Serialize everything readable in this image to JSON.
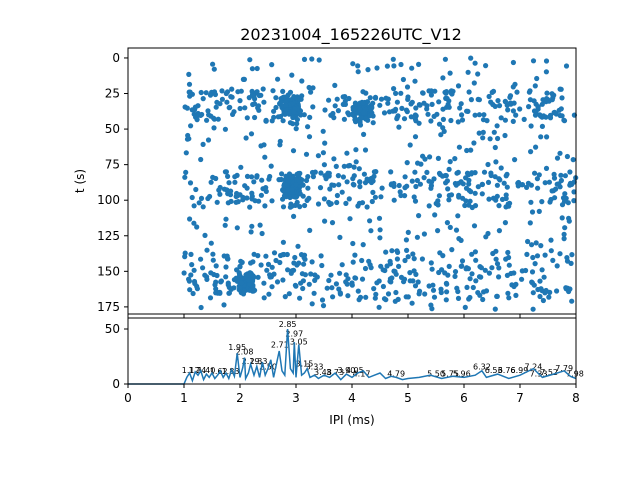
{
  "chart_data": [
    {
      "type": "scatter",
      "title": "20231004_165226UTC_V12",
      "xlabel": "",
      "ylabel": "t (s)",
      "xlim": [
        0,
        8
      ],
      "ylim": [
        180,
        -7
      ],
      "y_inverted": true,
      "yticks": [
        0,
        25,
        50,
        75,
        100,
        125,
        150,
        175
      ],
      "ytick_labels": [
        "0",
        "25",
        "50",
        "75",
        "100",
        "125",
        "150",
        "175"
      ],
      "x_range_of_points": [
        1.0,
        8.0
      ],
      "t_range_of_points": [
        0,
        177
      ],
      "dense_bands_t": [
        [
          23,
          45
        ],
        [
          80,
          105
        ],
        [
          135,
          170
        ]
      ],
      "dense_clusters": [
        {
          "x": 2.9,
          "t": 33
        },
        {
          "x": 2.95,
          "t": 90
        },
        {
          "x": 2.1,
          "t": 158
        },
        {
          "x": 4.2,
          "t": 38
        }
      ],
      "color": "#1f77b4",
      "grid": false
    },
    {
      "type": "line",
      "xlabel": "IPI (ms)",
      "ylabel": "",
      "xlim": [
        0,
        8
      ],
      "ylim": [
        0,
        60
      ],
      "xticks": [
        0,
        1,
        2,
        3,
        4,
        5,
        6,
        7,
        8
      ],
      "xtick_labels": [
        "0",
        "1",
        "2",
        "3",
        "4",
        "5",
        "6",
        "7",
        "8"
      ],
      "yticks": [
        0,
        50
      ],
      "ytick_labels": [
        "0",
        "50"
      ],
      "color": "#1f77b4",
      "grid": false,
      "x": [
        0,
        0.5,
        1.0,
        1.05,
        1.1,
        1.15,
        1.2,
        1.25,
        1.3,
        1.35,
        1.4,
        1.45,
        1.5,
        1.55,
        1.6,
        1.65,
        1.7,
        1.75,
        1.8,
        1.85,
        1.9,
        1.95,
        2.0,
        2.05,
        2.08,
        2.1,
        2.15,
        2.19,
        2.25,
        2.3,
        2.35,
        2.4,
        2.45,
        2.5,
        2.55,
        2.6,
        2.65,
        2.7,
        2.75,
        2.8,
        2.85,
        2.9,
        2.95,
        2.97,
        3.0,
        3.05,
        3.1,
        3.15,
        3.2,
        3.25,
        3.33,
        3.4,
        3.5,
        3.6,
        3.7,
        3.8,
        3.9,
        4.0,
        4.1,
        4.2,
        4.3,
        4.4,
        4.5,
        4.6,
        4.7,
        4.79,
        4.9,
        5.0,
        5.2,
        5.4,
        5.6,
        5.8,
        6.0,
        6.2,
        6.32,
        6.4,
        6.6,
        6.8,
        7.0,
        7.24,
        7.4,
        7.6,
        7.79,
        7.9,
        8.0
      ],
      "values": [
        0,
        0,
        0,
        6,
        10,
        3,
        11,
        8,
        12,
        4,
        9,
        6,
        10,
        5,
        8,
        12,
        6,
        10,
        5,
        13,
        7,
        28,
        6,
        15,
        24,
        5,
        10,
        18,
        8,
        16,
        6,
        20,
        8,
        14,
        22,
        6,
        18,
        30,
        12,
        8,
        50,
        14,
        10,
        38,
        6,
        36,
        8,
        10,
        14,
        6,
        8,
        5,
        8,
        6,
        10,
        4,
        9,
        6,
        10,
        12,
        6,
        8,
        10,
        5,
        7,
        6,
        4,
        5,
        6,
        8,
        5,
        7,
        6,
        8,
        12,
        6,
        9,
        5,
        8,
        14,
        6,
        9,
        12,
        7,
        5
      ],
      "peak_labels": [
        {
          "x": 1.12,
          "y": 10,
          "text": "1.12"
        },
        {
          "x": 1.24,
          "y": 10,
          "text": "1.24"
        },
        {
          "x": 1.4,
          "y": 10,
          "text": "1.40"
        },
        {
          "x": 1.62,
          "y": 9,
          "text": "1.62"
        },
        {
          "x": 1.83,
          "y": 9,
          "text": "1.83"
        },
        {
          "x": 1.95,
          "y": 31,
          "text": "1.95"
        },
        {
          "x": 2.08,
          "y": 27,
          "text": "2.08"
        },
        {
          "x": 2.19,
          "y": 18,
          "text": "2.19"
        },
        {
          "x": 2.33,
          "y": 18,
          "text": "2.33"
        },
        {
          "x": 2.5,
          "y": 13,
          "text": "2.50"
        },
        {
          "x": 2.71,
          "y": 33,
          "text": "2.71"
        },
        {
          "x": 2.85,
          "y": 52,
          "text": "2.85"
        },
        {
          "x": 2.97,
          "y": 43,
          "text": "2.97"
        },
        {
          "x": 3.05,
          "y": 36,
          "text": "3.05"
        },
        {
          "x": 3.15,
          "y": 16,
          "text": "3.15"
        },
        {
          "x": 3.33,
          "y": 13,
          "text": "3.33"
        },
        {
          "x": 3.48,
          "y": 8,
          "text": "3.48"
        },
        {
          "x": 3.7,
          "y": 8,
          "text": "3.73"
        },
        {
          "x": 3.9,
          "y": 10,
          "text": "3.90"
        },
        {
          "x": 4.05,
          "y": 10,
          "text": "4.05"
        },
        {
          "x": 4.17,
          "y": 7,
          "text": "4.17"
        },
        {
          "x": 4.79,
          "y": 7,
          "text": "4.79"
        },
        {
          "x": 5.5,
          "y": 7,
          "text": "5.50"
        },
        {
          "x": 5.75,
          "y": 7,
          "text": "5.75"
        },
        {
          "x": 5.96,
          "y": 7,
          "text": "5.96"
        },
        {
          "x": 6.32,
          "y": 13,
          "text": "6.32"
        },
        {
          "x": 6.53,
          "y": 10,
          "text": "6.53"
        },
        {
          "x": 6.76,
          "y": 10,
          "text": "6.76"
        },
        {
          "x": 6.99,
          "y": 10,
          "text": "6.99"
        },
        {
          "x": 7.24,
          "y": 13,
          "text": "7.24"
        },
        {
          "x": 7.33,
          "y": 7,
          "text": "7.33"
        },
        {
          "x": 7.52,
          "y": 8,
          "text": "7.52"
        },
        {
          "x": 7.79,
          "y": 12,
          "text": "7.79"
        },
        {
          "x": 7.98,
          "y": 7,
          "text": "7.98"
        }
      ]
    }
  ]
}
